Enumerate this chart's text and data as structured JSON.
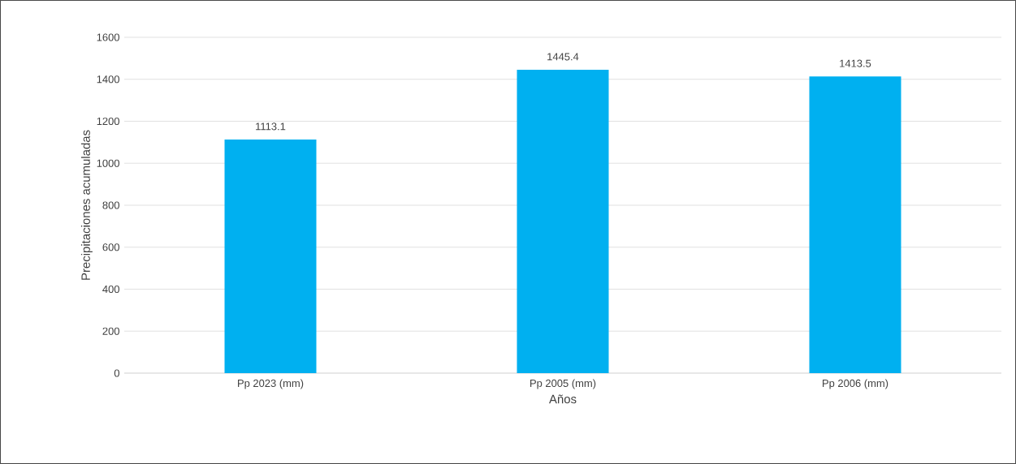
{
  "chart_data": {
    "type": "bar",
    "xlabel": "Años",
    "ylabel": "Precipitaciones acumuladas",
    "categories": [
      "Pp 2023 (mm)",
      "Pp 2005 (mm)",
      "Pp 2006 (mm)"
    ],
    "values": [
      1113.1,
      1445.4,
      1413.5
    ],
    "color": "#00b0f0",
    "ylim": [
      0,
      1600
    ],
    "yticks": [
      0,
      200,
      400,
      600,
      800,
      1000,
      1200,
      1400,
      1600
    ],
    "grid": "y",
    "data_labels": true
  }
}
